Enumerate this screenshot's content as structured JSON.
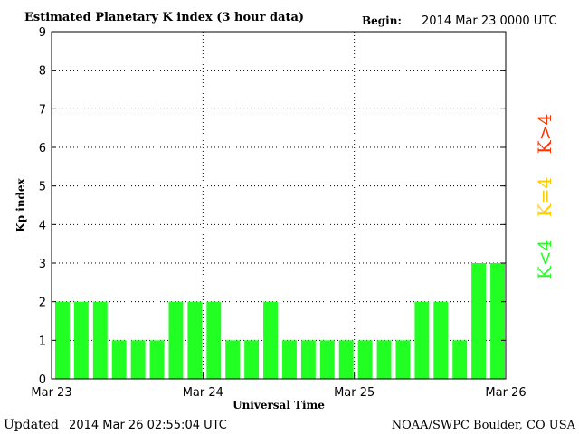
{
  "chart_data": {
    "type": "bar",
    "title": "Estimated Planetary K index (3 hour data)",
    "begin_label": "Begin:",
    "begin_value": "2014 Mar 23 0000 UTC",
    "xlabel": "Universal Time",
    "ylabel": "Kp index",
    "ylim": [
      0,
      9
    ],
    "yticks": [
      "0",
      "1",
      "2",
      "3",
      "4",
      "5",
      "6",
      "7",
      "8",
      "9"
    ],
    "xticks": [
      {
        "label": "Mar 23",
        "bar_index": 0
      },
      {
        "label": "Mar 24",
        "bar_index": 8
      },
      {
        "label": "Mar 25",
        "bar_index": 16
      },
      {
        "label": "Mar 26",
        "bar_index": 24
      }
    ],
    "values": [
      2,
      2,
      2,
      1,
      1,
      1,
      2,
      2,
      2,
      1,
      1,
      2,
      1,
      1,
      1,
      1,
      1,
      1,
      1,
      2,
      2,
      1,
      3,
      3
    ],
    "bar_colors": {
      "lt4": "#22ff22",
      "eq4": "#ffcc00",
      "gt4": "#ff3300"
    },
    "legend": [
      {
        "label": "K<4",
        "color": "#22ff22"
      },
      {
        "label": "K=4",
        "color": "#ffcc00"
      },
      {
        "label": "K>4",
        "color": "#ff3300"
      }
    ],
    "grid": "dotted at y=1..8 and day boundaries"
  },
  "footer": {
    "updated_label": "Updated",
    "updated_value": "2014 Mar 26 02:55:04 UTC",
    "credit": "NOAA/SWPC Boulder, CO USA"
  }
}
